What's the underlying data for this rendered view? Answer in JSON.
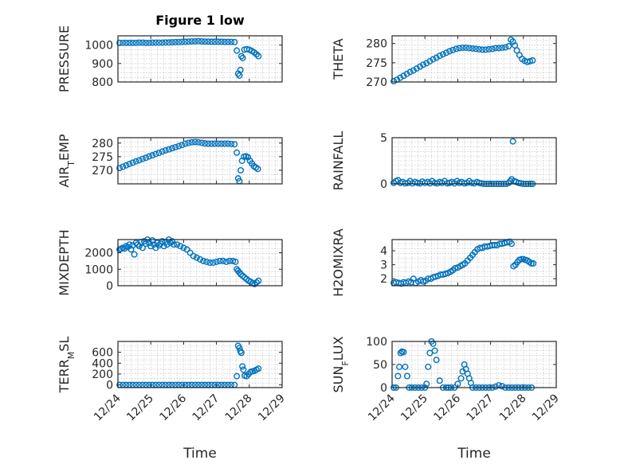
{
  "figure": {
    "title": "Figure 1 low",
    "xlabel": "Time",
    "marker_color": "#0072BD",
    "marker": "circle",
    "grid": "minor dotted"
  },
  "chart_data": [
    {
      "type": "scatter",
      "ylabel": "PRESSURE",
      "ylim": [
        800,
        1050
      ],
      "yticks": [
        800,
        900,
        1000
      ],
      "xlim": [
        0,
        5
      ],
      "xticklabels": [
        "12/24",
        "12/25",
        "12/26",
        "12/27",
        "12/28",
        "12/29"
      ],
      "x": [
        0.05,
        0.15,
        0.25,
        0.35,
        0.45,
        0.55,
        0.65,
        0.75,
        0.85,
        0.95,
        1.05,
        1.15,
        1.25,
        1.35,
        1.45,
        1.55,
        1.65,
        1.75,
        1.85,
        1.95,
        2.05,
        2.15,
        2.25,
        2.35,
        2.45,
        2.55,
        2.65,
        2.75,
        2.85,
        2.95,
        3.05,
        3.15,
        3.25,
        3.35,
        3.45,
        3.55,
        3.62,
        3.66,
        3.7,
        3.73,
        3.76,
        3.8,
        3.85,
        3.92,
        4.0,
        4.08,
        4.15,
        4.22,
        4.28
      ],
      "y": [
        1012,
        1012,
        1012,
        1012,
        1012,
        1012,
        1013,
        1013,
        1012,
        1012,
        1013,
        1013,
        1013,
        1013,
        1014,
        1014,
        1015,
        1016,
        1016,
        1017,
        1018,
        1019,
        1020,
        1020,
        1021,
        1020,
        1019,
        1019,
        1018,
        1018,
        1018,
        1018,
        1017,
        1017,
        1017,
        1016,
        970,
        845,
        835,
        865,
        940,
        930,
        975,
        978,
        975,
        968,
        960,
        950,
        940
      ]
    },
    {
      "type": "scatter",
      "ylabel": "THETA",
      "ylim": [
        270,
        282
      ],
      "yticks": [
        270,
        275,
        280
      ],
      "xlim": [
        0,
        5
      ],
      "xticklabels": [
        "12/24",
        "12/25",
        "12/26",
        "12/27",
        "12/28",
        "12/29"
      ],
      "x": [
        0.05,
        0.15,
        0.25,
        0.35,
        0.45,
        0.55,
        0.65,
        0.75,
        0.85,
        0.95,
        1.05,
        1.15,
        1.25,
        1.35,
        1.45,
        1.55,
        1.65,
        1.75,
        1.85,
        1.95,
        2.05,
        2.15,
        2.25,
        2.35,
        2.45,
        2.55,
        2.65,
        2.75,
        2.85,
        2.95,
        3.05,
        3.15,
        3.25,
        3.35,
        3.45,
        3.55,
        3.62,
        3.68,
        3.74,
        3.8,
        3.88,
        3.96,
        4.04,
        4.12,
        4.2,
        4.28
      ],
      "y": [
        270.2,
        270.6,
        271.1,
        271.6,
        272.1,
        272.6,
        273.0,
        273.5,
        274.0,
        274.5,
        274.9,
        275.4,
        275.9,
        276.3,
        276.8,
        277.2,
        277.6,
        278.0,
        278.3,
        278.6,
        278.8,
        278.9,
        278.9,
        278.8,
        278.7,
        278.6,
        278.5,
        278.4,
        278.4,
        278.5,
        278.6,
        278.8,
        278.8,
        278.9,
        279.0,
        279.3,
        281.0,
        280.5,
        279.5,
        278.2,
        277.0,
        276.0,
        275.5,
        275.2,
        275.4,
        275.6
      ]
    },
    {
      "type": "scatter",
      "ylabel": "AIR_TEMP",
      "ylim": [
        265,
        282
      ],
      "yticks": [
        270,
        275,
        280
      ],
      "xlim": [
        0,
        5
      ],
      "xticklabels": [
        "12/24",
        "12/25",
        "12/26",
        "12/27",
        "12/28",
        "12/29"
      ],
      "x": [
        0.05,
        0.15,
        0.25,
        0.35,
        0.45,
        0.55,
        0.65,
        0.75,
        0.85,
        0.95,
        1.05,
        1.15,
        1.25,
        1.35,
        1.45,
        1.55,
        1.65,
        1.75,
        1.85,
        1.95,
        2.05,
        2.15,
        2.25,
        2.35,
        2.45,
        2.55,
        2.65,
        2.75,
        2.85,
        2.95,
        3.05,
        3.15,
        3.25,
        3.35,
        3.45,
        3.55,
        3.62,
        3.66,
        3.7,
        3.74,
        3.78,
        3.84,
        3.9,
        3.96,
        4.02,
        4.08,
        4.14,
        4.2,
        4.26
      ],
      "y": [
        270.8,
        271.3,
        271.8,
        272.3,
        272.8,
        273.3,
        273.7,
        274.2,
        274.6,
        275.1,
        275.5,
        276.0,
        276.4,
        276.9,
        277.3,
        277.7,
        278.1,
        278.5,
        278.9,
        279.3,
        279.8,
        280.1,
        280.3,
        280.4,
        280.3,
        280.1,
        279.9,
        279.8,
        279.8,
        279.8,
        279.8,
        279.8,
        279.8,
        279.8,
        279.7,
        279.6,
        276.5,
        267.0,
        266.0,
        270.0,
        273.5,
        275.0,
        275.2,
        274.8,
        273.5,
        272.5,
        271.5,
        271.0,
        270.5
      ]
    },
    {
      "type": "scatter",
      "ylabel": "RAINFALL",
      "ylim": [
        0,
        5
      ],
      "yticks": [
        0,
        5
      ],
      "xlim": [
        0,
        5
      ],
      "xticklabels": [
        "12/24",
        "12/25",
        "12/26",
        "12/27",
        "12/28",
        "12/29"
      ],
      "x": [
        0.05,
        0.12,
        0.18,
        0.25,
        0.32,
        0.4,
        0.48,
        0.55,
        0.62,
        0.7,
        0.78,
        0.85,
        0.92,
        1.0,
        1.08,
        1.15,
        1.22,
        1.3,
        1.38,
        1.45,
        1.52,
        1.6,
        1.68,
        1.75,
        1.82,
        1.9,
        1.98,
        2.05,
        2.12,
        2.2,
        2.28,
        2.35,
        2.42,
        2.5,
        2.58,
        2.65,
        2.72,
        2.8,
        2.88,
        2.95,
        3.02,
        3.1,
        3.18,
        3.25,
        3.32,
        3.4,
        3.48,
        3.55,
        3.6,
        3.64,
        3.68,
        3.72,
        3.78,
        3.85,
        3.92,
        4.0,
        4.08,
        4.15,
        4.22,
        4.28
      ],
      "y": [
        0.1,
        0.3,
        0.4,
        0.1,
        0.2,
        0.05,
        0.1,
        0.3,
        0.05,
        0.2,
        0.1,
        0.05,
        0.25,
        0.1,
        0.2,
        0.05,
        0.3,
        0.1,
        0.05,
        0.2,
        0.1,
        0.3,
        0.05,
        0.1,
        0.2,
        0.05,
        0.3,
        0.1,
        0.2,
        0.05,
        0.1,
        0.3,
        0.1,
        0.05,
        0.2,
        0.1,
        0.05,
        0.0,
        0.0,
        0.0,
        0.0,
        0.0,
        0.0,
        0.0,
        0.0,
        0.0,
        0.0,
        0.1,
        0.3,
        0.5,
        4.6,
        0.3,
        0.2,
        0.1,
        0.05,
        0.0,
        0.0,
        0.0,
        0.0,
        0.0
      ]
    },
    {
      "type": "scatter",
      "ylabel": "MIXDEPTH",
      "ylim": [
        0,
        2800
      ],
      "yticks": [
        0,
        1000,
        2000
      ],
      "xlim": [
        0,
        5
      ],
      "xticklabels": [
        "12/24",
        "12/25",
        "12/26",
        "12/27",
        "12/28",
        "12/29"
      ],
      "x": [
        0.05,
        0.1,
        0.15,
        0.2,
        0.25,
        0.3,
        0.35,
        0.4,
        0.45,
        0.5,
        0.55,
        0.6,
        0.65,
        0.7,
        0.75,
        0.8,
        0.85,
        0.9,
        0.95,
        1.0,
        1.05,
        1.1,
        1.15,
        1.2,
        1.25,
        1.3,
        1.35,
        1.4,
        1.45,
        1.5,
        1.55,
        1.6,
        1.65,
        1.7,
        1.8,
        1.9,
        2.0,
        2.1,
        2.2,
        2.3,
        2.4,
        2.5,
        2.6,
        2.7,
        2.8,
        2.9,
        3.0,
        3.1,
        3.2,
        3.3,
        3.4,
        3.5,
        3.58,
        3.62,
        3.66,
        3.7,
        3.74,
        3.8,
        3.86,
        3.92,
        3.98,
        4.04,
        4.1,
        4.16,
        4.22,
        4.28
      ],
      "y": [
        2200,
        2250,
        2300,
        2250,
        2400,
        2350,
        2500,
        2200,
        2450,
        1900,
        2600,
        2500,
        2400,
        2650,
        2300,
        2700,
        2550,
        2800,
        2600,
        2400,
        2750,
        2500,
        2300,
        2600,
        2450,
        2550,
        2700,
        2400,
        2650,
        2500,
        2800,
        2600,
        2700,
        2500,
        2500,
        2400,
        2300,
        2200,
        2000,
        1800,
        1700,
        1600,
        1500,
        1450,
        1400,
        1400,
        1450,
        1500,
        1500,
        1450,
        1500,
        1500,
        1450,
        1000,
        900,
        800,
        700,
        600,
        500,
        400,
        300,
        250,
        150,
        100,
        200,
        300
      ]
    },
    {
      "type": "scatter",
      "ylabel": "H2OMIXRA",
      "ylim": [
        1.5,
        4.8
      ],
      "yticks": [
        2,
        3,
        4
      ],
      "xlim": [
        0,
        5
      ],
      "xticklabels": [
        "12/24",
        "12/25",
        "12/26",
        "12/27",
        "12/28",
        "12/29"
      ],
      "x": [
        0.05,
        0.12,
        0.2,
        0.28,
        0.35,
        0.42,
        0.5,
        0.58,
        0.65,
        0.72,
        0.8,
        0.88,
        0.95,
        1.02,
        1.1,
        1.18,
        1.25,
        1.32,
        1.4,
        1.48,
        1.55,
        1.62,
        1.7,
        1.78,
        1.85,
        1.92,
        2.0,
        2.08,
        2.15,
        2.22,
        2.3,
        2.38,
        2.45,
        2.52,
        2.6,
        2.68,
        2.75,
        2.82,
        2.9,
        2.98,
        3.05,
        3.12,
        3.2,
        3.28,
        3.35,
        3.42,
        3.5,
        3.58,
        3.64,
        3.7,
        3.76,
        3.82,
        3.88,
        3.94,
        4.0,
        4.06,
        4.12,
        4.18,
        4.24,
        4.3
      ],
      "y": [
        1.7,
        1.75,
        1.7,
        1.65,
        1.75,
        1.7,
        1.8,
        1.75,
        2.0,
        1.7,
        1.8,
        1.9,
        1.8,
        1.85,
        2.0,
        2.0,
        2.1,
        2.15,
        2.2,
        2.3,
        2.3,
        2.35,
        2.4,
        2.5,
        2.6,
        2.75,
        2.8,
        2.9,
        3.0,
        3.1,
        3.3,
        3.5,
        3.7,
        3.9,
        4.1,
        4.2,
        4.2,
        4.3,
        4.3,
        4.35,
        4.4,
        4.4,
        4.4,
        4.5,
        4.5,
        4.55,
        4.6,
        4.65,
        4.5,
        2.9,
        3.0,
        3.2,
        3.35,
        3.4,
        3.4,
        3.35,
        3.3,
        3.2,
        3.1,
        3.1
      ]
    },
    {
      "type": "scatter",
      "ylabel": "TERR_MSL",
      "ylim": [
        -50,
        800
      ],
      "yticks": [
        0,
        200,
        400,
        600
      ],
      "xlim": [
        0,
        5
      ],
      "xticklabels": [
        "12/24",
        "12/25",
        "12/26",
        "12/27",
        "12/28",
        "12/29"
      ],
      "x": [
        0.05,
        0.15,
        0.25,
        0.35,
        0.45,
        0.55,
        0.65,
        0.75,
        0.85,
        0.95,
        1.05,
        1.15,
        1.25,
        1.35,
        1.45,
        1.55,
        1.65,
        1.75,
        1.85,
        1.95,
        2.05,
        2.15,
        2.25,
        2.35,
        2.45,
        2.55,
        2.65,
        2.75,
        2.85,
        2.95,
        3.05,
        3.15,
        3.25,
        3.35,
        3.45,
        3.55,
        3.62,
        3.66,
        3.7,
        3.73,
        3.76,
        3.79,
        3.82,
        3.86,
        3.92,
        3.98,
        4.04,
        4.1,
        4.16,
        4.22,
        4.28
      ],
      "y": [
        0,
        0,
        0,
        0,
        0,
        0,
        0,
        0,
        0,
        0,
        0,
        0,
        0,
        0,
        0,
        0,
        0,
        0,
        0,
        0,
        0,
        0,
        0,
        0,
        0,
        0,
        0,
        0,
        0,
        0,
        0,
        0,
        0,
        0,
        0,
        0,
        160,
        720,
        680,
        620,
        590,
        340,
        280,
        170,
        160,
        200,
        240,
        250,
        260,
        280,
        300
      ]
    },
    {
      "type": "scatter",
      "ylabel": "SUN_FLUX",
      "ylim": [
        0,
        100
      ],
      "yticks": [
        0,
        50,
        100
      ],
      "xlim": [
        0,
        5
      ],
      "xticklabels": [
        "12/24",
        "12/25",
        "12/26",
        "12/27",
        "12/28",
        "12/29"
      ],
      "x": [
        0.05,
        0.12,
        0.18,
        0.22,
        0.26,
        0.3,
        0.35,
        0.4,
        0.46,
        0.52,
        0.6,
        0.7,
        0.8,
        0.9,
        1.0,
        1.05,
        1.1,
        1.15,
        1.2,
        1.25,
        1.3,
        1.35,
        1.45,
        1.55,
        1.65,
        1.72,
        1.8,
        1.9,
        2.0,
        2.1,
        2.15,
        2.2,
        2.25,
        2.3,
        2.35,
        2.4,
        2.45,
        2.55,
        2.65,
        2.75,
        2.85,
        2.95,
        3.05,
        3.15,
        3.25,
        3.35,
        3.45,
        3.55,
        3.65,
        3.75,
        3.85,
        3.95,
        4.05,
        4.15,
        4.25
      ],
      "y": [
        0,
        0,
        25,
        45,
        75,
        78,
        77,
        45,
        25,
        0,
        0,
        0,
        0,
        0,
        0,
        8,
        45,
        75,
        100,
        95,
        80,
        60,
        15,
        0,
        0,
        0,
        0,
        0,
        8,
        20,
        35,
        50,
        40,
        30,
        20,
        10,
        0,
        0,
        0,
        0,
        0,
        0,
        0,
        2,
        5,
        3,
        0,
        0,
        0,
        0,
        0,
        0,
        0,
        0,
        0
      ]
    }
  ]
}
